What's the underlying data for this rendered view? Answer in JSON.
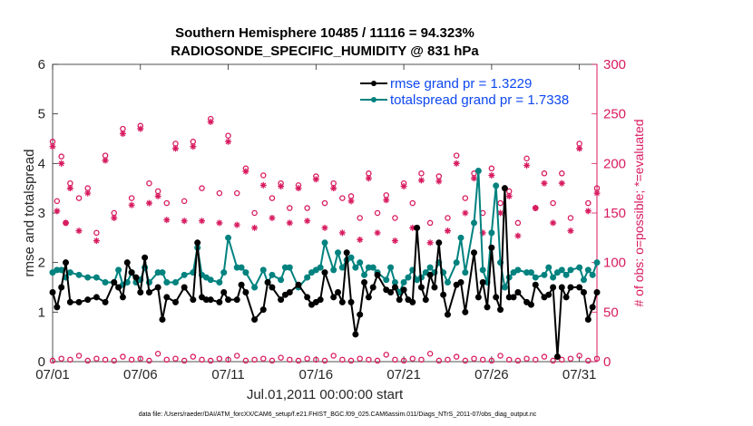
{
  "chart_data": {
    "type": "line",
    "title_line1": "Southern Hemisphere 10485 / 11116 = 94.323%",
    "title_line2": "RADIOSONDE_SPECIFIC_HUMIDITY @ 831 hPa",
    "xlabel": "Jul.01,2011 00:00:00 start",
    "ylabel": "rmse and totalspread",
    "y2label": "# of obs: o=possible; *=evaluated",
    "footer": "data file: /Users/raeder/DAI/ATM_forcXX/CAM6_setup/f.e21.FHIST_BGC.f09_025.CAM6assim.011/Diags_NTrS_2011-07/obs_diag_output.nc",
    "xlim": [
      0,
      31
    ],
    "ylim": [
      0,
      6
    ],
    "y2lim": [
      0,
      300
    ],
    "xticks": [
      0,
      5,
      10,
      15,
      20,
      25,
      30
    ],
    "xtick_labels": [
      "07/01",
      "07/06",
      "07/11",
      "07/16",
      "07/21",
      "07/26",
      "07/31"
    ],
    "yticks": [
      0,
      1,
      2,
      3,
      4,
      5,
      6
    ],
    "ytick_labels": [
      "0",
      "1",
      "2",
      "3",
      "4",
      "5",
      "6"
    ],
    "y2ticks": [
      0,
      50,
      100,
      150,
      200,
      250,
      300
    ],
    "y2tick_labels": [
      "0",
      "50",
      "100",
      "150",
      "200",
      "250",
      "300"
    ],
    "colors": {
      "rmse": "#000000",
      "spread": "#00827f",
      "obs": "#d81b60",
      "legend_text": "#0d47f0"
    },
    "legend": [
      {
        "name": "rmse grand pr = 1.3229",
        "series": "rmse"
      },
      {
        "name": "totalspread grand pr = 1.7338",
        "series": "spread"
      }
    ],
    "series": [
      {
        "name": "rmse",
        "x": [
          0,
          0.25,
          0.5,
          0.75,
          1,
          1.5,
          2,
          2.5,
          3,
          3.5,
          3.75,
          4,
          4.25,
          4.5,
          4.75,
          5,
          5.25,
          5.5,
          6,
          6.25,
          6.5,
          7,
          7.5,
          8,
          8.25,
          8.5,
          8.75,
          9,
          9.5,
          9.75,
          10,
          10.5,
          10.75,
          11,
          11.5,
          12,
          12.25,
          12.5,
          13,
          13.25,
          13.5,
          14,
          14.5,
          14.75,
          15,
          15.25,
          15.5,
          16,
          16.25,
          16.5,
          16.75,
          17,
          17.25,
          17.5,
          17.75,
          18,
          18.25,
          18.5,
          19,
          19.25,
          19.5,
          19.75,
          20,
          20.25,
          20.5,
          20.75,
          21,
          21.25,
          21.5,
          21.75,
          22,
          22.25,
          22.5,
          23,
          23.25,
          23.5,
          24,
          24.25,
          24.5,
          24.75,
          25,
          25.25,
          25.5,
          25.75,
          26,
          26.25,
          26.5,
          27,
          27.25,
          27.5,
          28,
          28.25,
          28.5,
          28.75,
          29,
          29.25,
          29.5,
          30,
          30.25,
          30.5,
          30.75,
          31
        ],
        "y": [
          1.4,
          1.1,
          1.5,
          2.0,
          1.2,
          1.2,
          1.25,
          1.3,
          1.2,
          1.6,
          1.5,
          1.3,
          2.0,
          1.8,
          1.7,
          1.4,
          2.1,
          1.4,
          1.5,
          0.85,
          1.3,
          1.2,
          1.5,
          1.25,
          2.4,
          1.3,
          1.25,
          1.25,
          1.2,
          1.4,
          1.25,
          1.25,
          1.55,
          1.4,
          0.85,
          1.05,
          1.6,
          1.5,
          1.25,
          1.35,
          1.4,
          1.55,
          1.3,
          1.15,
          1.2,
          1.25,
          1.8,
          1.3,
          1.4,
          1.2,
          2.2,
          1.2,
          0.55,
          0.95,
          1.6,
          1.3,
          1.5,
          1.75,
          1.45,
          1.4,
          1.5,
          1.25,
          1.45,
          1.25,
          1.2,
          2.7,
          1.5,
          1.25,
          1.75,
          1.5,
          2.4,
          1.35,
          0.95,
          1.55,
          1.6,
          1.0,
          2.2,
          1.3,
          1.6,
          1.1,
          2.3,
          1.3,
          1.05,
          3.5,
          1.3,
          1.3,
          1.4,
          1.2,
          1.15,
          1.55,
          1.3,
          1.35,
          1.5,
          0.1,
          1.5,
          1.3,
          1.5,
          1.5,
          1.4,
          0.85,
          1.1,
          1.4
        ],
        "style": "line-circles"
      },
      {
        "name": "totalspread",
        "x": [
          0,
          0.25,
          0.5,
          0.75,
          1,
          1.5,
          2,
          2.5,
          3,
          3.5,
          3.75,
          4,
          4.25,
          4.5,
          4.75,
          5,
          5.25,
          5.5,
          6,
          6.25,
          6.5,
          7,
          7.5,
          8,
          8.25,
          8.5,
          8.75,
          9,
          9.5,
          9.75,
          10,
          10.5,
          10.75,
          11,
          11.5,
          12,
          12.25,
          12.5,
          13,
          13.25,
          13.5,
          14,
          14.5,
          14.75,
          15,
          15.25,
          15.5,
          16,
          16.25,
          16.5,
          16.75,
          17,
          17.25,
          17.5,
          17.75,
          18,
          18.25,
          18.5,
          19,
          19.25,
          19.5,
          19.75,
          20,
          20.25,
          20.5,
          20.75,
          21,
          21.25,
          21.5,
          21.75,
          22,
          22.25,
          22.5,
          23,
          23.25,
          23.5,
          24,
          24.25,
          24.5,
          24.75,
          25,
          25.25,
          25.5,
          25.75,
          26,
          26.25,
          26.5,
          27,
          27.25,
          27.5,
          28,
          28.25,
          28.5,
          28.75,
          29,
          29.25,
          29.5,
          30,
          30.25,
          30.5,
          30.75,
          31
        ],
        "y": [
          1.8,
          1.85,
          1.85,
          1.7,
          1.8,
          1.75,
          1.7,
          1.7,
          1.6,
          1.6,
          1.85,
          1.55,
          1.6,
          1.8,
          1.6,
          1.65,
          1.9,
          1.6,
          1.8,
          1.8,
          1.6,
          1.6,
          1.75,
          1.8,
          2.3,
          1.75,
          1.7,
          1.65,
          1.6,
          1.8,
          2.5,
          1.9,
          1.9,
          1.8,
          1.5,
          1.85,
          1.6,
          1.75,
          1.65,
          1.9,
          1.9,
          1.5,
          1.7,
          1.8,
          1.85,
          1.9,
          2.4,
          1.85,
          2.2,
          1.9,
          2.05,
          2.1,
          1.9,
          2.0,
          1.75,
          1.9,
          1.9,
          1.8,
          1.65,
          1.9,
          1.6,
          1.4,
          1.6,
          1.7,
          1.85,
          1.65,
          1.7,
          1.8,
          1.9,
          1.8,
          2.0,
          1.8,
          1.6,
          2.0,
          2.5,
          1.8,
          2.8,
          3.85,
          1.85,
          1.6,
          2.6,
          3.55,
          2.0,
          1.5,
          1.7,
          1.8,
          1.85,
          1.8,
          1.8,
          1.7,
          1.75,
          1.9,
          1.7,
          1.8,
          1.85,
          1.75,
          1.85,
          1.9,
          1.65,
          1.85,
          1.75,
          2.0
        ],
        "style": "line-circles"
      },
      {
        "name": "possible",
        "x": [
          0,
          0.25,
          0.5,
          0.75,
          1,
          1.5,
          2,
          2.5,
          3,
          3.5,
          4,
          4.5,
          5,
          5.5,
          6,
          6.5,
          7,
          7.5,
          8,
          8.5,
          9,
          9.5,
          10,
          10.5,
          11,
          11.5,
          12,
          12.5,
          13,
          13.5,
          14,
          14.5,
          15,
          15.5,
          16,
          16.5,
          17,
          17.5,
          18,
          18.5,
          19,
          19.5,
          20,
          20.5,
          21,
          21.5,
          22,
          22.5,
          23,
          23.5,
          24,
          24.5,
          25,
          25.5,
          26,
          26.5,
          27,
          27.5,
          28,
          28.5,
          29,
          29.5,
          30,
          30.5,
          31
        ],
        "y": [
          222,
          162,
          207,
          140,
          180,
          165,
          175,
          130,
          208,
          150,
          235,
          165,
          238,
          180,
          172,
          160,
          220,
          162,
          222,
          175,
          245,
          170,
          228,
          170,
          195,
          150,
          188,
          165,
          180,
          155,
          178,
          155,
          187,
          160,
          180,
          165,
          167,
          145,
          190,
          150,
          168,
          145,
          180,
          160,
          190,
          140,
          187,
          145,
          208,
          165,
          190,
          150,
          195,
          160,
          172,
          140,
          205,
          155,
          190,
          160,
          190,
          145,
          220,
          160,
          175
        ],
        "style": "open-circle"
      },
      {
        "name": "evaluated",
        "x": [
          0,
          0.25,
          0.5,
          0.75,
          1,
          1.5,
          2,
          2.5,
          3,
          3.5,
          4,
          4.5,
          5,
          5.5,
          6,
          6.5,
          7,
          7.5,
          8,
          8.5,
          9,
          9.5,
          10,
          10.5,
          11,
          11.5,
          12,
          12.5,
          13,
          13.5,
          14,
          14.5,
          15,
          15.5,
          16,
          16.5,
          17,
          17.5,
          18,
          18.5,
          19,
          19.5,
          20,
          20.5,
          21,
          21.5,
          22,
          22.5,
          23,
          23.5,
          24,
          24.5,
          25,
          25.5,
          26,
          26.5,
          27,
          27.5,
          28,
          28.5,
          29,
          29.5,
          30,
          30.5,
          31
        ],
        "y": [
          217,
          152,
          200,
          140,
          175,
          132,
          170,
          122,
          203,
          145,
          230,
          158,
          235,
          160,
          167,
          143,
          215,
          142,
          217,
          142,
          242,
          140,
          222,
          138,
          192,
          135,
          178,
          145,
          177,
          140,
          175,
          142,
          184,
          135,
          175,
          130,
          162,
          123,
          185,
          130,
          163,
          122,
          177,
          135,
          183,
          120,
          182,
          132,
          200,
          150,
          185,
          130,
          188,
          150,
          167,
          127,
          198,
          155,
          180,
          140,
          180,
          132,
          215,
          152,
          170
        ],
        "style": "asterisk"
      },
      {
        "name": "possible_bottom",
        "x": [
          0,
          0.5,
          1,
          1.5,
          2,
          2.5,
          3,
          3.5,
          4,
          4.5,
          5,
          5.5,
          6,
          6.5,
          7,
          7.5,
          8,
          8.5,
          9,
          9.5,
          10,
          10.5,
          11,
          11.5,
          12,
          12.5,
          13,
          13.5,
          14,
          14.5,
          15,
          15.5,
          16,
          16.5,
          17,
          17.5,
          18,
          18.5,
          19,
          19.5,
          20,
          20.5,
          21,
          21.5,
          22,
          22.5,
          23,
          23.5,
          24,
          24.5,
          25,
          25.5,
          26,
          26.5,
          27,
          27.5,
          28,
          28.5,
          29,
          29.5,
          30,
          30.5,
          31
        ],
        "y": [
          1,
          3,
          2,
          6,
          1,
          3,
          2,
          1,
          5,
          2,
          3,
          1,
          8,
          2,
          3,
          1,
          5,
          2,
          1,
          3,
          2,
          6,
          1,
          2,
          3,
          1,
          4,
          2,
          1,
          3,
          2,
          1,
          6,
          2,
          1,
          3,
          2,
          1,
          7,
          2,
          1,
          3,
          2,
          8,
          1,
          2,
          5,
          1,
          3,
          2,
          1,
          6,
          2,
          1,
          3,
          2,
          5,
          1,
          2,
          3,
          6,
          1,
          3
        ],
        "style": "open-circle"
      }
    ]
  }
}
